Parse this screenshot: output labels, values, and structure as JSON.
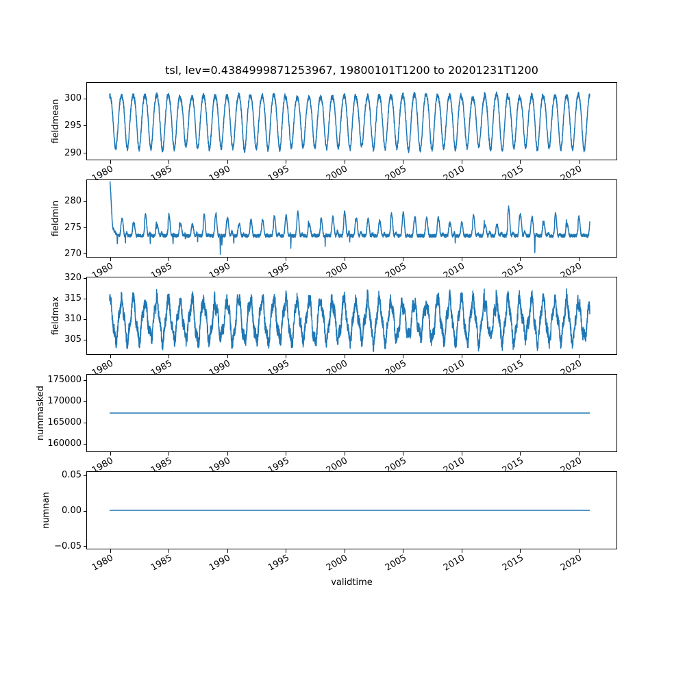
{
  "title": "tsl, lev=0.4384999871253967, 19800101T1200 to 20201231T1200",
  "chart_data": {
    "type": "line",
    "title": "tsl, lev=0.4384999871253967, 19800101T1200 to 20201231T1200",
    "xlabel": "validtime",
    "x_tick_labels": [
      "1980",
      "1985",
      "1990",
      "1995",
      "2000",
      "2005",
      "2010",
      "2015",
      "2020"
    ],
    "x_ticks": [
      1980,
      1985,
      1990,
      1995,
      2000,
      2005,
      2010,
      2015,
      2020
    ],
    "x_data_range": [
      1980.0,
      2021.0
    ],
    "x_lim": [
      1978.0,
      2023.3
    ],
    "line_color": "#1f77b4",
    "line_width": 1.5,
    "grid": false,
    "legend": "none",
    "subplots": [
      {
        "name": "fieldmean",
        "ylabel": "fieldmean",
        "yticks": [
          290,
          295,
          300
        ],
        "ytick_labels": [
          "290",
          "295",
          "300"
        ],
        "ylim": [
          288.6,
          302.9
        ],
        "value_range": [
          289.9,
          302.2
        ],
        "model": {
          "kind": "seasonal",
          "base": 296.1,
          "amp": 4.8,
          "amp_jitter": 0.45,
          "harm2": -0.55,
          "phase": 0.02,
          "noise": 0.45,
          "samples_per_year": 104,
          "seed": 11
        }
      },
      {
        "name": "fieldmin",
        "ylabel": "fieldmin",
        "yticks": [
          270,
          275,
          280
        ],
        "ytick_labels": [
          "270",
          "275",
          "280"
        ],
        "ylim": [
          269.2,
          284.1
        ],
        "value_range": [
          269.9,
          283.5
        ],
        "model": {
          "kind": "spiky",
          "base": 273.35,
          "spike_min": 2.0,
          "spike_var": 2.6,
          "spike2": 0.9,
          "boost": 1.4,
          "noise": 0.3,
          "init_amp": 8.5,
          "init_decay": 6,
          "clamp_max": 283.7,
          "dips": [
            {
              "t": 1989.45,
              "depth": 3.45
            },
            {
              "t": 2016.3,
              "depth": 3.2
            }
          ],
          "samples_per_year": 104,
          "seed": 22
        }
      },
      {
        "name": "fieldmax",
        "ylabel": "fieldmax",
        "yticks": [
          305,
          310,
          315,
          320
        ],
        "ytick_labels": [
          "305",
          "310",
          "315",
          "320"
        ],
        "ylim": [
          301.2,
          320.2
        ],
        "value_range": [
          302.0,
          319.2
        ],
        "model": {
          "kind": "noisy_seasonal",
          "base": 309.6,
          "amp": 3.6,
          "amp_var": 1.9,
          "harm3": 1.1,
          "noise": 1.45,
          "clamp": [
            302.0,
            319.3
          ],
          "samples_per_year": 104,
          "seed": 33
        }
      },
      {
        "name": "nummasked",
        "ylabel": "nummasked",
        "yticks": [
          160000,
          165000,
          170000,
          175000
        ],
        "ytick_labels": [
          "160000",
          "165000",
          "170000",
          "175000"
        ],
        "ylim": [
          157909,
          176291
        ],
        "constant": 167100
      },
      {
        "name": "numnan",
        "ylabel": "numnan",
        "yticks": [
          -0.05,
          0.0,
          0.05
        ],
        "ytick_labels": [
          "−0.05",
          "0.00",
          "0.05"
        ],
        "ylim": [
          -0.055,
          0.055
        ],
        "constant": 0.0
      }
    ]
  }
}
